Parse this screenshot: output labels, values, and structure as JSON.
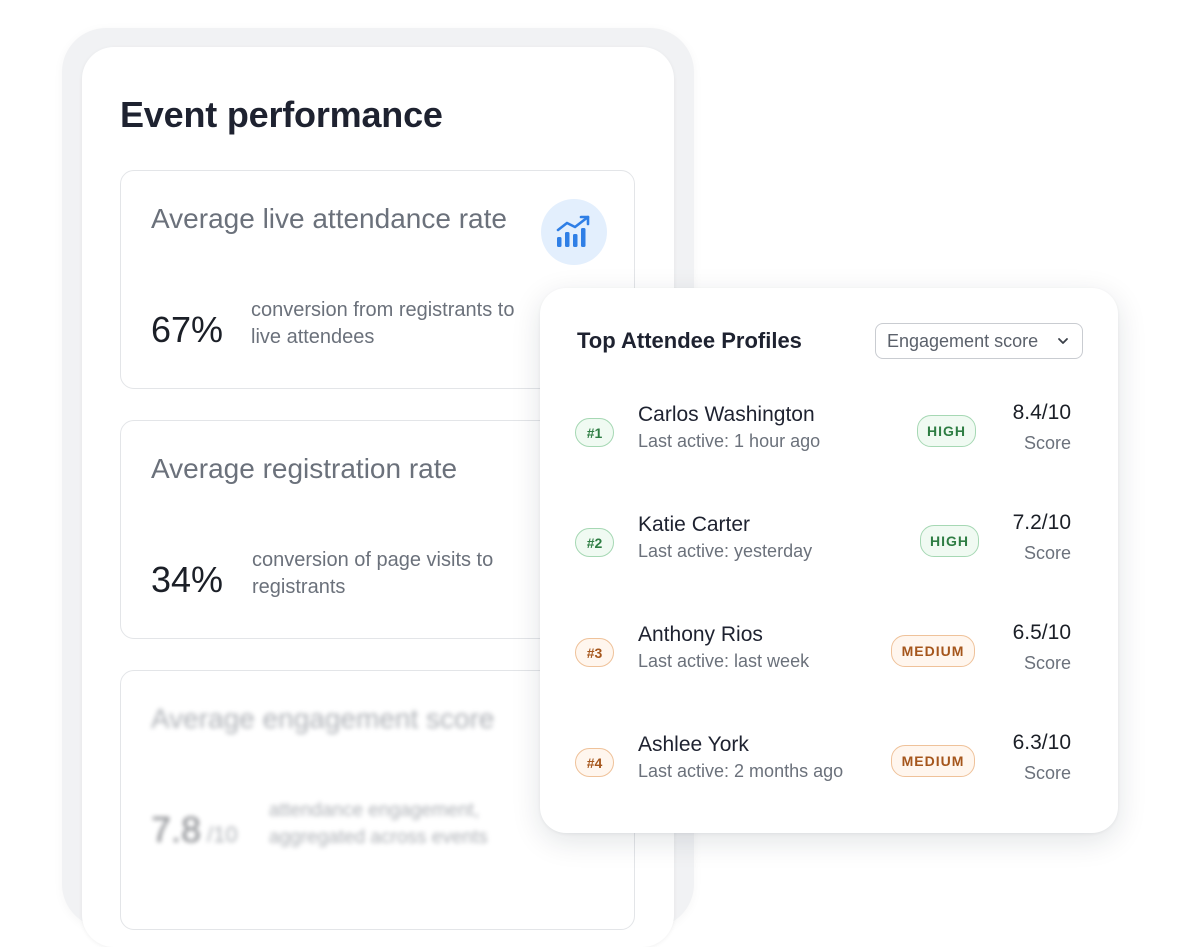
{
  "panel": {
    "title": "Event performance",
    "metrics": [
      {
        "title": "Average live attendance rate",
        "value": "67%",
        "description": "conversion from registrants to live attendees",
        "icon": "trending-chart-icon"
      },
      {
        "title": "Average registration rate",
        "value": "34%",
        "description": "conversion of page visits to registrants"
      },
      {
        "title": "Average engagement score",
        "value": "7.8",
        "unit": "/10",
        "description": "attendance engagement, aggregated across events"
      }
    ]
  },
  "card": {
    "title": "Top Attendee Profiles",
    "sort_label": "Engagement score",
    "profiles": [
      {
        "rank": "#1",
        "name": "Carlos Washington",
        "last_active": "Last active: 1 hour ago",
        "level": "HIGH",
        "score": "8.4/10",
        "score_label": "Score"
      },
      {
        "rank": "#2",
        "name": "Katie Carter",
        "last_active": "Last active: yesterday",
        "level": "HIGH",
        "score": "7.2/10",
        "score_label": "Score"
      },
      {
        "rank": "#3",
        "name": "Anthony Rios",
        "last_active": "Last active: last week",
        "level": "MEDIUM",
        "score": "6.5/10",
        "score_label": "Score"
      },
      {
        "rank": "#4",
        "name": "Ashlee York",
        "last_active": "Last active: 2 months ago",
        "level": "MEDIUM",
        "score": "6.3/10",
        "score_label": "Score"
      }
    ]
  },
  "colors": {
    "accent_blue": "#2f7fe6",
    "high_green": "#2e7d43",
    "medium_orange": "#a5561c"
  }
}
